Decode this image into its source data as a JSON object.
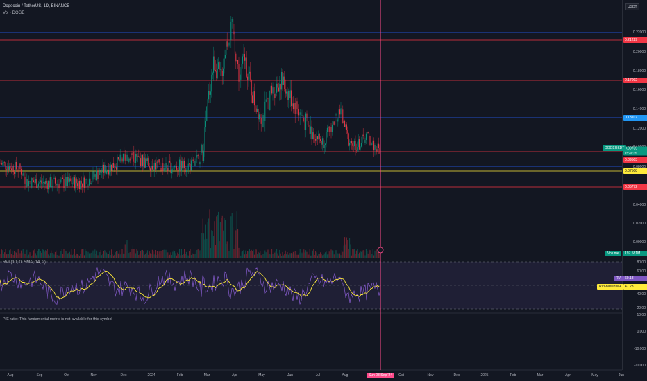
{
  "header": {
    "symbol_line": "Dogecoin / TetherUS, 1D, BINANCE",
    "volume_line": "Vol · DOGE",
    "rvi_line": "RVI (10, 0, SMA, 14, 2)",
    "pe_note": "P/E ratio: This fundamental metric is not available for this symbol"
  },
  "price_axis": {
    "currency": "USDT",
    "ticks": [
      "0.22000",
      "0.20000",
      "0.18000",
      "0.16000",
      "0.14000",
      "0.12000",
      "0.10000",
      "0.08000",
      "0.06000",
      "0.04000",
      "0.02000",
      "0.00000"
    ],
    "levels": [
      {
        "label": "0.21229",
        "color": "#f23645"
      },
      {
        "label": "0.17092",
        "color": "#f23645"
      },
      {
        "label": "0.13107",
        "color": "#2962ff"
      },
      {
        "label": "0.09503",
        "color": "#f23645"
      },
      {
        "label": "0.07508",
        "color": "#ffeb3b"
      },
      {
        "label": "0.05772",
        "color": "#f23645"
      }
    ],
    "last_price": {
      "symbol": "DOGEUSDT",
      "price": "0.09735",
      "countdown": "15:40:35",
      "color": "#089981"
    }
  },
  "volume": {
    "label": "Volume",
    "value": "197.581M"
  },
  "rvi": {
    "ticks": [
      "80.00",
      "60.00",
      "40.00",
      "20.00",
      "10.00",
      "0.000",
      "-10.000",
      "-20.000"
    ],
    "rvi_label": "RVI",
    "rvi_value": "60.18",
    "ma_label": "RVI-based MA",
    "ma_value": "47.23"
  },
  "time_axis": {
    "labels": [
      "Aug",
      "Sep",
      "Oct",
      "Nov",
      "Dec",
      "2024",
      "Feb",
      "Mar",
      "Apr",
      "May",
      "Jun",
      "Jul",
      "Aug",
      "Oct",
      "Nov",
      "Dec",
      "2025",
      "Feb",
      "Mar",
      "Apr",
      "May",
      "Jun"
    ],
    "cursor_date": "Sun 08 Sep '24"
  },
  "colors": {
    "up": "#089981",
    "down": "#f23645",
    "rvi_line": "#7e57c2",
    "ma_line": "#ffeb3b",
    "cursor": "#ff4b8b"
  }
}
